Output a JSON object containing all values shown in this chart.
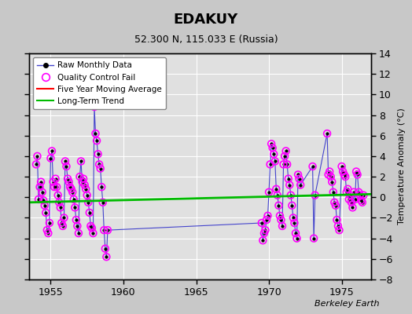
{
  "title": "EDAKUY",
  "subtitle": "52.300 N, 115.033 E (Russia)",
  "ylabel": "Temperature Anomaly (°C)",
  "watermark": "Berkeley Earth",
  "xlim": [
    1953.5,
    1977.0
  ],
  "ylim": [
    -8,
    14
  ],
  "yticks": [
    -8,
    -6,
    -4,
    -2,
    0,
    2,
    4,
    6,
    8,
    10,
    12,
    14
  ],
  "xticks": [
    1955,
    1960,
    1965,
    1970,
    1975
  ],
  "bg_color": "#c8c8c8",
  "plot_bg_color": "#e0e0e0",
  "grid_color": "#ffffff",
  "raw_line_color": "#4444cc",
  "raw_marker_color": "#000000",
  "qc_marker_color": "#ff00ff",
  "moving_avg_color": "#ff0000",
  "trend_color": "#00bb00",
  "raw_data": [
    [
      1954.0,
      3.2
    ],
    [
      1954.083,
      4.0
    ],
    [
      1954.167,
      -0.2
    ],
    [
      1954.25,
      1.0
    ],
    [
      1954.333,
      1.5
    ],
    [
      1954.417,
      0.5
    ],
    [
      1954.5,
      -0.3
    ],
    [
      1954.583,
      -0.8
    ],
    [
      1954.667,
      -1.5
    ],
    [
      1954.75,
      -3.2
    ],
    [
      1954.833,
      -3.5
    ],
    [
      1954.917,
      -2.5
    ],
    [
      1955.0,
      3.8
    ],
    [
      1955.083,
      4.5
    ],
    [
      1955.167,
      1.5
    ],
    [
      1955.25,
      1.0
    ],
    [
      1955.333,
      1.8
    ],
    [
      1955.417,
      1.0
    ],
    [
      1955.5,
      0.2
    ],
    [
      1955.583,
      -0.5
    ],
    [
      1955.667,
      -1.0
    ],
    [
      1955.75,
      -2.5
    ],
    [
      1955.833,
      -2.8
    ],
    [
      1955.917,
      -2.0
    ],
    [
      1956.0,
      3.5
    ],
    [
      1956.083,
      3.0
    ],
    [
      1956.167,
      1.8
    ],
    [
      1956.25,
      1.5
    ],
    [
      1956.333,
      1.0
    ],
    [
      1956.417,
      0.8
    ],
    [
      1956.5,
      0.5
    ],
    [
      1956.583,
      -0.2
    ],
    [
      1956.667,
      -1.0
    ],
    [
      1956.75,
      -2.2
    ],
    [
      1956.833,
      -2.8
    ],
    [
      1956.917,
      -3.5
    ],
    [
      1957.0,
      2.0
    ],
    [
      1957.083,
      3.5
    ],
    [
      1957.167,
      1.5
    ],
    [
      1957.25,
      1.8
    ],
    [
      1957.333,
      1.2
    ],
    [
      1957.417,
      0.8
    ],
    [
      1957.5,
      0.2
    ],
    [
      1957.583,
      -0.5
    ],
    [
      1957.667,
      -1.5
    ],
    [
      1957.75,
      -2.8
    ],
    [
      1957.833,
      -3.0
    ],
    [
      1957.917,
      -3.5
    ],
    [
      1958.0,
      8.8
    ],
    [
      1958.083,
      6.2
    ],
    [
      1958.167,
      5.5
    ],
    [
      1958.25,
      4.2
    ],
    [
      1958.333,
      3.2
    ],
    [
      1958.417,
      2.8
    ],
    [
      1958.5,
      1.0
    ],
    [
      1958.583,
      -0.5
    ],
    [
      1958.667,
      -3.2
    ],
    [
      1958.75,
      -5.0
    ],
    [
      1958.833,
      -5.8
    ],
    [
      1958.917,
      -3.2
    ],
    [
      1969.5,
      -2.5
    ],
    [
      1969.583,
      -4.2
    ],
    [
      1969.667,
      -3.5
    ],
    [
      1969.75,
      -3.2
    ],
    [
      1969.833,
      -2.2
    ],
    [
      1969.917,
      -1.8
    ],
    [
      1970.0,
      0.5
    ],
    [
      1970.083,
      3.2
    ],
    [
      1970.167,
      5.2
    ],
    [
      1970.25,
      4.8
    ],
    [
      1970.333,
      4.2
    ],
    [
      1970.417,
      3.5
    ],
    [
      1970.5,
      0.8
    ],
    [
      1970.583,
      0.2
    ],
    [
      1970.667,
      -0.8
    ],
    [
      1970.75,
      -1.8
    ],
    [
      1970.833,
      -2.2
    ],
    [
      1970.917,
      -2.8
    ],
    [
      1971.0,
      3.2
    ],
    [
      1971.083,
      4.0
    ],
    [
      1971.167,
      4.5
    ],
    [
      1971.25,
      3.2
    ],
    [
      1971.333,
      1.8
    ],
    [
      1971.417,
      1.2
    ],
    [
      1971.5,
      0.2
    ],
    [
      1971.583,
      -0.8
    ],
    [
      1971.667,
      -2.0
    ],
    [
      1971.75,
      -2.5
    ],
    [
      1971.833,
      -3.5
    ],
    [
      1971.917,
      -4.0
    ],
    [
      1972.0,
      2.2
    ],
    [
      1972.083,
      1.8
    ],
    [
      1972.167,
      1.2
    ],
    [
      1973.0,
      3.0
    ],
    [
      1973.083,
      -4.0
    ],
    [
      1973.167,
      0.2
    ],
    [
      1974.0,
      6.2
    ],
    [
      1974.083,
      2.2
    ],
    [
      1974.167,
      2.5
    ],
    [
      1974.25,
      2.0
    ],
    [
      1974.333,
      1.5
    ],
    [
      1974.417,
      0.5
    ],
    [
      1974.5,
      -0.5
    ],
    [
      1974.583,
      -0.8
    ],
    [
      1974.667,
      -2.2
    ],
    [
      1974.75,
      -2.8
    ],
    [
      1974.833,
      -3.2
    ],
    [
      1975.0,
      3.0
    ],
    [
      1975.083,
      2.5
    ],
    [
      1975.167,
      2.2
    ],
    [
      1975.25,
      2.0
    ],
    [
      1975.333,
      0.5
    ],
    [
      1975.417,
      0.8
    ],
    [
      1975.5,
      -0.2
    ],
    [
      1975.583,
      0.2
    ],
    [
      1975.667,
      -0.5
    ],
    [
      1975.75,
      -1.0
    ],
    [
      1975.833,
      0.5
    ],
    [
      1975.917,
      -0.2
    ],
    [
      1976.0,
      2.5
    ],
    [
      1976.083,
      2.2
    ],
    [
      1976.167,
      0.5
    ],
    [
      1976.25,
      0.2
    ],
    [
      1976.333,
      -0.3
    ],
    [
      1976.417,
      -0.5
    ],
    [
      1976.5,
      0.2
    ]
  ],
  "trend_x": [
    1953.5,
    1977.0
  ],
  "trend_y": [
    -0.5,
    0.3
  ],
  "legend_labels": [
    "Raw Monthly Data",
    "Quality Control Fail",
    "Five Year Moving Average",
    "Long-Term Trend"
  ]
}
